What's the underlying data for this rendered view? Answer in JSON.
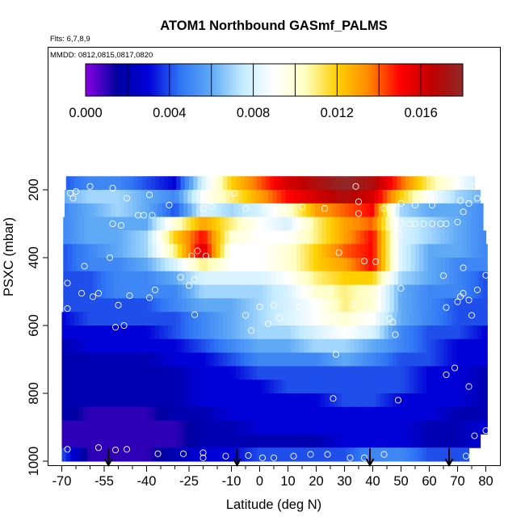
{
  "chart_data": {
    "type": "heatmap",
    "title": "ATOM1 Northbound GASmf_PALMS",
    "flights_note": "Flts: 6,7,8,9",
    "dates_note": "MMDD: 0812,0815,0817,0820",
    "xlabel": "Latitude (deg N)",
    "ylabel": "PSXC (mbar)",
    "xlim": [
      -70,
      82
    ],
    "ylim": [
      1000,
      100
    ],
    "x_ticks": [
      -70,
      -55,
      -40,
      -25,
      -10,
      0,
      10,
      20,
      30,
      40,
      50,
      60,
      70,
      80
    ],
    "x_minor_ticks": [
      -65,
      -60,
      -50,
      -45,
      -35,
      -30,
      -20,
      -15,
      -5,
      5,
      15,
      25,
      35,
      45,
      55,
      65,
      75
    ],
    "y_ticks": [
      200,
      400,
      600,
      800,
      1000
    ],
    "colorbar": {
      "range": [
        0,
        0.018
      ],
      "ticks": [
        0.0,
        0.004,
        0.008,
        0.012,
        0.016
      ],
      "tick_labels": [
        "0.000",
        "0.004",
        "0.008",
        "0.012",
        "0.016"
      ],
      "major_lines": [
        0.002,
        0.004,
        0.006,
        0.008,
        0.01,
        0.012,
        0.014,
        0.016
      ],
      "stops": [
        "#8a00e6",
        "#0000a0",
        "#0000d8",
        "#2f75f5",
        "#60aaf5",
        "#c4ecff",
        "#ffffff",
        "#ffffc0",
        "#ffd000",
        "#ff8a00",
        "#ff0000",
        "#c00000",
        "#902828"
      ]
    },
    "pressure_bands": [
      180,
      220,
      260,
      300,
      340,
      380,
      420,
      460,
      500,
      540,
      580,
      620,
      660,
      700,
      740,
      780,
      820,
      860,
      900,
      940,
      980
    ],
    "band_row_extent": [
      {
        "from": -68.5,
        "to": 76
      },
      {
        "from": -69,
        "to": 78
      },
      {
        "from": -69,
        "to": 79
      },
      {
        "from": -69.5,
        "to": 79
      },
      {
        "from": -69.5,
        "to": 80
      },
      {
        "from": -69.5,
        "to": 80.5
      },
      {
        "from": -69.5,
        "to": 80.5
      },
      {
        "from": -69.5,
        "to": 80.5
      },
      {
        "from": -69.5,
        "to": 80.5
      },
      {
        "from": -69.5,
        "to": 80.5
      },
      {
        "from": -70,
        "to": 80.5
      },
      {
        "from": -70,
        "to": 80.5
      },
      {
        "from": -70,
        "to": 80.5
      },
      {
        "from": -70,
        "to": 80.5
      },
      {
        "from": -70,
        "to": 80.5
      },
      {
        "from": -70,
        "to": 80.5
      },
      {
        "from": -70,
        "to": 80.5
      },
      {
        "from": -70,
        "to": 80.5
      },
      {
        "from": -70,
        "to": 80.5
      },
      {
        "from": -70,
        "to": 78
      },
      {
        "from": -70,
        "to": 74
      }
    ],
    "band_anchor_lats": [
      -70,
      -60,
      -50,
      -40,
      -30,
      -20,
      -10,
      0,
      10,
      20,
      30,
      40,
      50,
      60,
      70,
      80
    ],
    "band_anchor_values": [
      [
        0.004,
        0.005,
        0.005,
        0.004,
        0.003,
        0.008,
        0.012,
        0.014,
        0.016,
        0.017,
        0.018,
        0.017,
        0.014,
        0.011,
        0.009,
        0.007
      ],
      [
        0.006,
        0.007,
        0.007,
        0.006,
        0.005,
        0.009,
        0.011,
        0.013,
        0.015,
        0.016,
        0.017,
        0.016,
        0.012,
        0.009,
        0.007,
        0.006
      ],
      [
        0.005,
        0.006,
        0.007,
        0.006,
        0.004,
        0.008,
        0.007,
        0.008,
        0.01,
        0.013,
        0.014,
        0.015,
        0.007,
        0.006,
        0.006,
        0.005
      ],
      [
        0.005,
        0.006,
        0.006,
        0.006,
        0.01,
        0.013,
        0.011,
        0.009,
        0.008,
        0.011,
        0.013,
        0.014,
        0.008,
        0.007,
        0.006,
        0.005
      ],
      [
        0.005,
        0.006,
        0.006,
        0.007,
        0.012,
        0.015,
        0.01,
        0.009,
        0.009,
        0.011,
        0.013,
        0.015,
        0.008,
        0.007,
        0.006,
        0.005
      ],
      [
        0.004,
        0.005,
        0.006,
        0.007,
        0.011,
        0.016,
        0.009,
        0.009,
        0.01,
        0.012,
        0.014,
        0.015,
        0.008,
        0.006,
        0.006,
        0.005
      ],
      [
        0.004,
        0.005,
        0.005,
        0.006,
        0.008,
        0.011,
        0.009,
        0.009,
        0.01,
        0.012,
        0.013,
        0.015,
        0.008,
        0.006,
        0.005,
        0.005
      ],
      [
        0.004,
        0.004,
        0.005,
        0.005,
        0.006,
        0.008,
        0.008,
        0.008,
        0.009,
        0.011,
        0.012,
        0.012,
        0.007,
        0.006,
        0.005,
        0.004
      ],
      [
        0.004,
        0.004,
        0.005,
        0.005,
        0.005,
        0.007,
        0.007,
        0.007,
        0.008,
        0.01,
        0.011,
        0.01,
        0.006,
        0.005,
        0.005,
        0.004
      ],
      [
        0.004,
        0.004,
        0.004,
        0.004,
        0.005,
        0.006,
        0.006,
        0.007,
        0.008,
        0.009,
        0.011,
        0.01,
        0.006,
        0.005,
        0.004,
        0.004
      ],
      [
        0.003,
        0.004,
        0.004,
        0.004,
        0.004,
        0.005,
        0.006,
        0.007,
        0.008,
        0.009,
        0.01,
        0.009,
        0.006,
        0.005,
        0.004,
        0.004
      ],
      [
        0.003,
        0.003,
        0.003,
        0.003,
        0.004,
        0.005,
        0.006,
        0.007,
        0.007,
        0.008,
        0.009,
        0.008,
        0.005,
        0.004,
        0.004,
        0.003
      ],
      [
        0.002,
        0.003,
        0.003,
        0.003,
        0.003,
        0.004,
        0.005,
        0.006,
        0.006,
        0.007,
        0.007,
        0.006,
        0.005,
        0.004,
        0.003,
        0.003
      ],
      [
        0.002,
        0.002,
        0.002,
        0.002,
        0.003,
        0.003,
        0.004,
        0.005,
        0.005,
        0.005,
        0.006,
        0.005,
        0.004,
        0.004,
        0.003,
        0.003
      ],
      [
        0.002,
        0.002,
        0.002,
        0.002,
        0.002,
        0.003,
        0.003,
        0.004,
        0.004,
        0.004,
        0.004,
        0.004,
        0.004,
        0.003,
        0.003,
        0.002
      ],
      [
        0.002,
        0.002,
        0.002,
        0.002,
        0.002,
        0.003,
        0.003,
        0.003,
        0.004,
        0.004,
        0.004,
        0.004,
        0.004,
        0.003,
        0.003,
        0.002
      ],
      [
        0.002,
        0.002,
        0.002,
        0.002,
        0.002,
        0.003,
        0.003,
        0.003,
        0.003,
        0.003,
        0.004,
        0.004,
        0.003,
        0.003,
        0.003,
        0.002
      ],
      [
        0.002,
        0.001,
        0.001,
        0.001,
        0.002,
        0.002,
        0.003,
        0.003,
        0.003,
        0.003,
        0.003,
        0.003,
        0.003,
        0.003,
        0.002,
        0.002
      ],
      [
        0.001,
        0.001,
        0.001,
        0.001,
        0.001,
        0.002,
        0.002,
        0.003,
        0.003,
        0.003,
        0.003,
        0.003,
        0.003,
        0.002,
        0.002,
        0.003
      ],
      [
        0.001,
        0.001,
        0.001,
        0.001,
        0.001,
        0.002,
        0.002,
        0.002,
        0.002,
        0.002,
        0.003,
        0.003,
        0.003,
        0.002,
        0.002,
        0.003
      ],
      [
        0.004,
        0.001,
        0.001,
        0.001,
        0.002,
        0.003,
        0.003,
        0.004,
        0.004,
        0.004,
        0.004,
        0.005,
        0.005,
        0.004,
        0.004,
        0.004
      ]
    ],
    "sample_points": [
      {
        "lat": -67,
        "p": 210
      },
      {
        "lat": -66,
        "p": 225
      },
      {
        "lat": -65,
        "p": 205
      },
      {
        "lat": -60,
        "p": 190
      },
      {
        "lat": -52,
        "p": 195
      },
      {
        "lat": -47,
        "p": 225
      },
      {
        "lat": -39,
        "p": 215
      },
      {
        "lat": -32,
        "p": 245
      },
      {
        "lat": -20,
        "p": 255
      },
      {
        "lat": -17,
        "p": 250
      },
      {
        "lat": -9,
        "p": 210
      },
      {
        "lat": -5,
        "p": 255
      },
      {
        "lat": 2,
        "p": 255
      },
      {
        "lat": 10,
        "p": 265
      },
      {
        "lat": 15,
        "p": 250
      },
      {
        "lat": 23,
        "p": 255
      },
      {
        "lat": 34,
        "p": 190
      },
      {
        "lat": 35,
        "p": 235
      },
      {
        "lat": 44,
        "p": 255
      },
      {
        "lat": 50,
        "p": 240
      },
      {
        "lat": 55,
        "p": 245
      },
      {
        "lat": 61,
        "p": 245
      },
      {
        "lat": 71,
        "p": 232
      },
      {
        "lat": 72,
        "p": 265
      },
      {
        "lat": 74,
        "p": 240
      },
      {
        "lat": 76,
        "p": 190
      },
      {
        "lat": 77,
        "p": 225
      },
      {
        "lat": -52,
        "p": 300
      },
      {
        "lat": -49,
        "p": 305
      },
      {
        "lat": -43,
        "p": 275
      },
      {
        "lat": -41,
        "p": 275
      },
      {
        "lat": -38,
        "p": 275
      },
      {
        "lat": -5,
        "p": 290
      },
      {
        "lat": 0,
        "p": 290
      },
      {
        "lat": 35,
        "p": 270
      },
      {
        "lat": 47,
        "p": 295
      },
      {
        "lat": 50,
        "p": 300
      },
      {
        "lat": 53,
        "p": 300
      },
      {
        "lat": 55,
        "p": 300
      },
      {
        "lat": 58,
        "p": 300
      },
      {
        "lat": 61,
        "p": 300
      },
      {
        "lat": 64,
        "p": 300
      },
      {
        "lat": 66,
        "p": 300
      },
      {
        "lat": 70,
        "p": 295
      },
      {
        "lat": 49,
        "p": 325
      },
      {
        "lat": -53,
        "p": 400
      },
      {
        "lat": -62,
        "p": 425
      },
      {
        "lat": -24,
        "p": 395
      },
      {
        "lat": -22,
        "p": 380
      },
      {
        "lat": -19,
        "p": 395
      },
      {
        "lat": 28,
        "p": 385
      },
      {
        "lat": 37,
        "p": 410
      },
      {
        "lat": 41,
        "p": 412
      },
      {
        "lat": 65,
        "p": 453
      },
      {
        "lat": 72,
        "p": 430
      },
      {
        "lat": -68,
        "p": 475
      },
      {
        "lat": -63,
        "p": 505
      },
      {
        "lat": -59,
        "p": 515
      },
      {
        "lat": -57,
        "p": 505
      },
      {
        "lat": -46,
        "p": 512
      },
      {
        "lat": -37,
        "p": 495
      },
      {
        "lat": -39,
        "p": 518
      },
      {
        "lat": -28,
        "p": 458
      },
      {
        "lat": -25,
        "p": 482
      },
      {
        "lat": -23,
        "p": 465
      },
      {
        "lat": 17,
        "p": 495
      },
      {
        "lat": 25,
        "p": 495
      },
      {
        "lat": 50,
        "p": 490
      },
      {
        "lat": 70,
        "p": 530
      },
      {
        "lat": 71,
        "p": 515
      },
      {
        "lat": 72,
        "p": 505
      },
      {
        "lat": 74,
        "p": 525
      },
      {
        "lat": 77,
        "p": 495
      },
      {
        "lat": 80,
        "p": 452
      },
      {
        "lat": -68,
        "p": 550
      },
      {
        "lat": -50,
        "p": 540
      },
      {
        "lat": -23,
        "p": 568
      },
      {
        "lat": -5,
        "p": 570
      },
      {
        "lat": 0,
        "p": 545
      },
      {
        "lat": 5,
        "p": 540
      },
      {
        "lat": 14,
        "p": 545
      },
      {
        "lat": 33,
        "p": 540
      },
      {
        "lat": 38,
        "p": 555
      },
      {
        "lat": 46,
        "p": 580
      },
      {
        "lat": 47,
        "p": 590
      },
      {
        "lat": 66,
        "p": 547
      },
      {
        "lat": 75,
        "p": 570
      },
      {
        "lat": -51,
        "p": 605
      },
      {
        "lat": -48,
        "p": 600
      },
      {
        "lat": -3,
        "p": 615
      },
      {
        "lat": 3,
        "p": 595
      },
      {
        "lat": 7,
        "p": 578
      },
      {
        "lat": 33,
        "p": 612
      },
      {
        "lat": 48,
        "p": 627
      },
      {
        "lat": 27,
        "p": 685
      },
      {
        "lat": 69,
        "p": 725
      },
      {
        "lat": 66,
        "p": 745
      },
      {
        "lat": 74,
        "p": 780
      },
      {
        "lat": 26,
        "p": 815
      },
      {
        "lat": 49,
        "p": 820
      },
      {
        "lat": 80,
        "p": 910
      },
      {
        "lat": 76,
        "p": 925
      },
      {
        "lat": -68,
        "p": 965
      },
      {
        "lat": -57,
        "p": 960
      },
      {
        "lat": -51,
        "p": 967
      },
      {
        "lat": -47,
        "p": 965
      },
      {
        "lat": -36,
        "p": 978
      },
      {
        "lat": -27,
        "p": 978
      },
      {
        "lat": -20,
        "p": 975
      },
      {
        "lat": -20,
        "p": 990
      },
      {
        "lat": -12,
        "p": 985
      },
      {
        "lat": -4,
        "p": 983
      },
      {
        "lat": 1,
        "p": 990
      },
      {
        "lat": 5,
        "p": 990
      },
      {
        "lat": 12,
        "p": 985
      },
      {
        "lat": 18,
        "p": 980
      },
      {
        "lat": 24,
        "p": 980
      },
      {
        "lat": 32,
        "p": 990
      },
      {
        "lat": 37,
        "p": 990
      },
      {
        "lat": 44,
        "p": 980
      },
      {
        "lat": 73,
        "p": 985
      }
    ],
    "flight_arrows": [
      -53.5,
      -8,
      39,
      67
    ]
  }
}
